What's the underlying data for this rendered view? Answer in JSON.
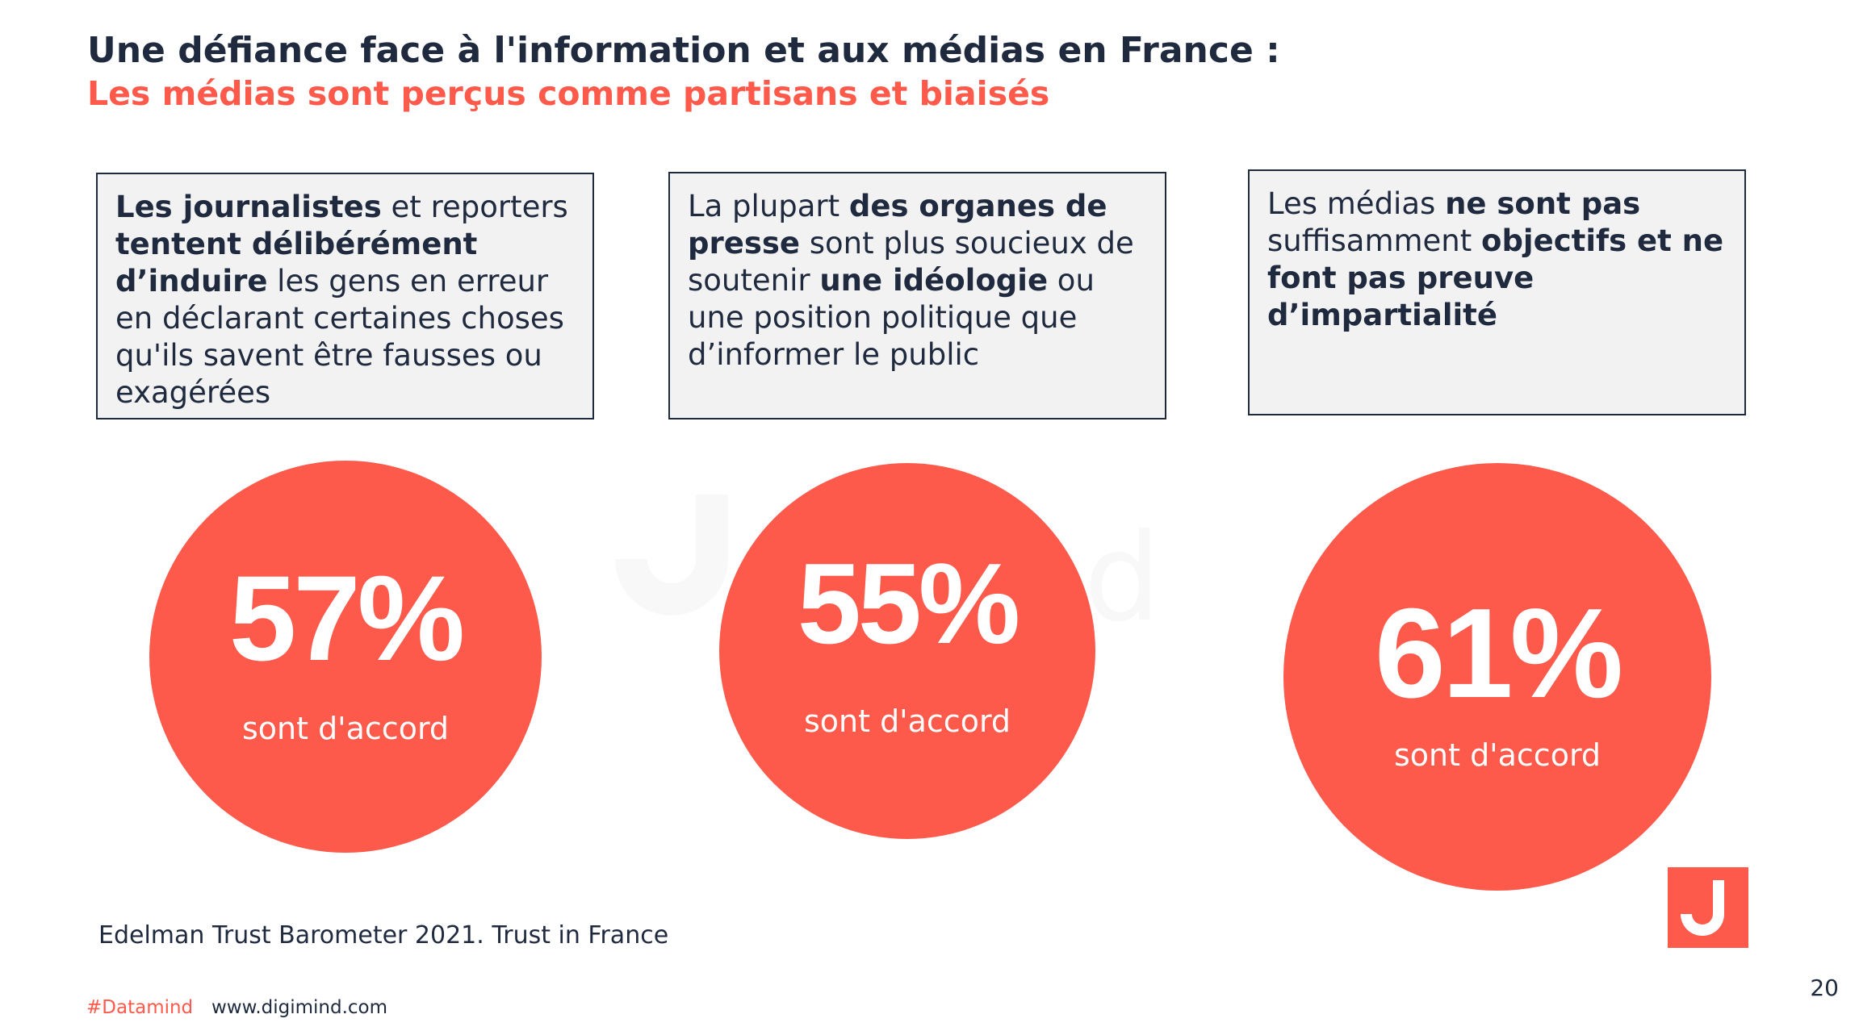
{
  "header": {
    "title": "Une défiance face à l'information et aux médias en France :",
    "subtitle": "Les médias sont perçus comme partisans et biaisés"
  },
  "statements": [
    {
      "parts": [
        {
          "text": "Les journalistes",
          "bold": true
        },
        {
          "text": " et reporters ",
          "bold": false
        },
        {
          "text": "tentent délibérément d’induire",
          "bold": true
        },
        {
          "text": " les gens en erreur en déclarant certaines choses qu'ils savent être fausses ou exagérées",
          "bold": false
        }
      ]
    },
    {
      "parts": [
        {
          "text": "La plupart ",
          "bold": false
        },
        {
          "text": "des organes de presse",
          "bold": true
        },
        {
          "text": " sont plus soucieux de soutenir ",
          "bold": false
        },
        {
          "text": "une idéologie",
          "bold": true
        },
        {
          "text": " ou une position politique que d’informer le public",
          "bold": false
        }
      ]
    },
    {
      "parts": [
        {
          "text": "Les médias ",
          "bold": false
        },
        {
          "text": "ne sont pas",
          "bold": true
        },
        {
          "text": " suffisamment ",
          "bold": false
        },
        {
          "text": "objectifs et ne font pas preuve d’impartialité",
          "bold": true
        }
      ]
    }
  ],
  "results": [
    {
      "value": "57%",
      "label": "sont d'accord"
    },
    {
      "value": "55%",
      "label": "sont d'accord"
    },
    {
      "value": "61%",
      "label": "sont d'accord"
    }
  ],
  "watermark": {
    "text": "d mind",
    "icon": "digimind-logo-icon"
  },
  "logo": {
    "icon": "digimind-logo-icon"
  },
  "footer": {
    "source": "Edelman Trust Barometer 2021. Trust in France",
    "hashtag": "#Datamind",
    "website": "www.digimind.com",
    "page_number": "20"
  },
  "colors": {
    "accent": "#fd5a4b",
    "dark": "#1f2a3f",
    "box_background": "#f2f2f2",
    "watermark": "#f4f4f4"
  }
}
